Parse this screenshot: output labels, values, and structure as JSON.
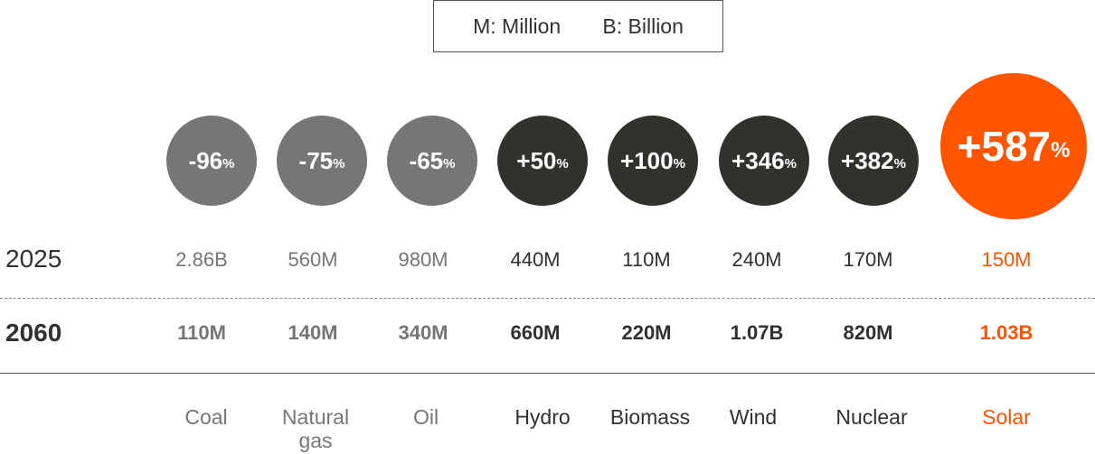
{
  "legend": [
    "M: Million",
    "B: Billion"
  ],
  "rows": [
    "2025",
    "2060"
  ],
  "columns": [
    {
      "name": "Coal",
      "change": {
        "number": "-96",
        "unit": "%"
      },
      "values": [
        "2.86B",
        "110M"
      ],
      "color": "#767676"
    },
    {
      "name": "Natural gas",
      "change": {
        "number": "-75",
        "unit": "%"
      },
      "values": [
        "560M",
        "140M"
      ],
      "color": "#767676"
    },
    {
      "name": "Oil",
      "change": {
        "number": "-65",
        "unit": "%"
      },
      "values": [
        "980M",
        "340M"
      ],
      "color": "#767676"
    },
    {
      "name": "Hydro",
      "change": {
        "number": "+50",
        "unit": "%"
      },
      "values": [
        "440M",
        "660M"
      ],
      "color": "#33312e"
    },
    {
      "name": "Biomass",
      "change": {
        "number": "+100",
        "unit": "%"
      },
      "values": [
        "110M",
        "220M"
      ],
      "color": "#33312e"
    },
    {
      "name": "Wind",
      "change": {
        "number": "+346",
        "unit": "%"
      },
      "values": [
        "240M",
        "1.07B"
      ],
      "color": "#33312e"
    },
    {
      "name": "Nuclear",
      "change": {
        "number": "+382",
        "unit": "%"
      },
      "values": [
        "170M",
        "820M"
      ],
      "color": "#33312e"
    },
    {
      "name": "Solar",
      "change": {
        "number": "+587",
        "unit": "%"
      },
      "values": [
        "150M",
        "1.03B"
      ],
      "color": "#ff5500",
      "emphasis": true
    }
  ]
}
